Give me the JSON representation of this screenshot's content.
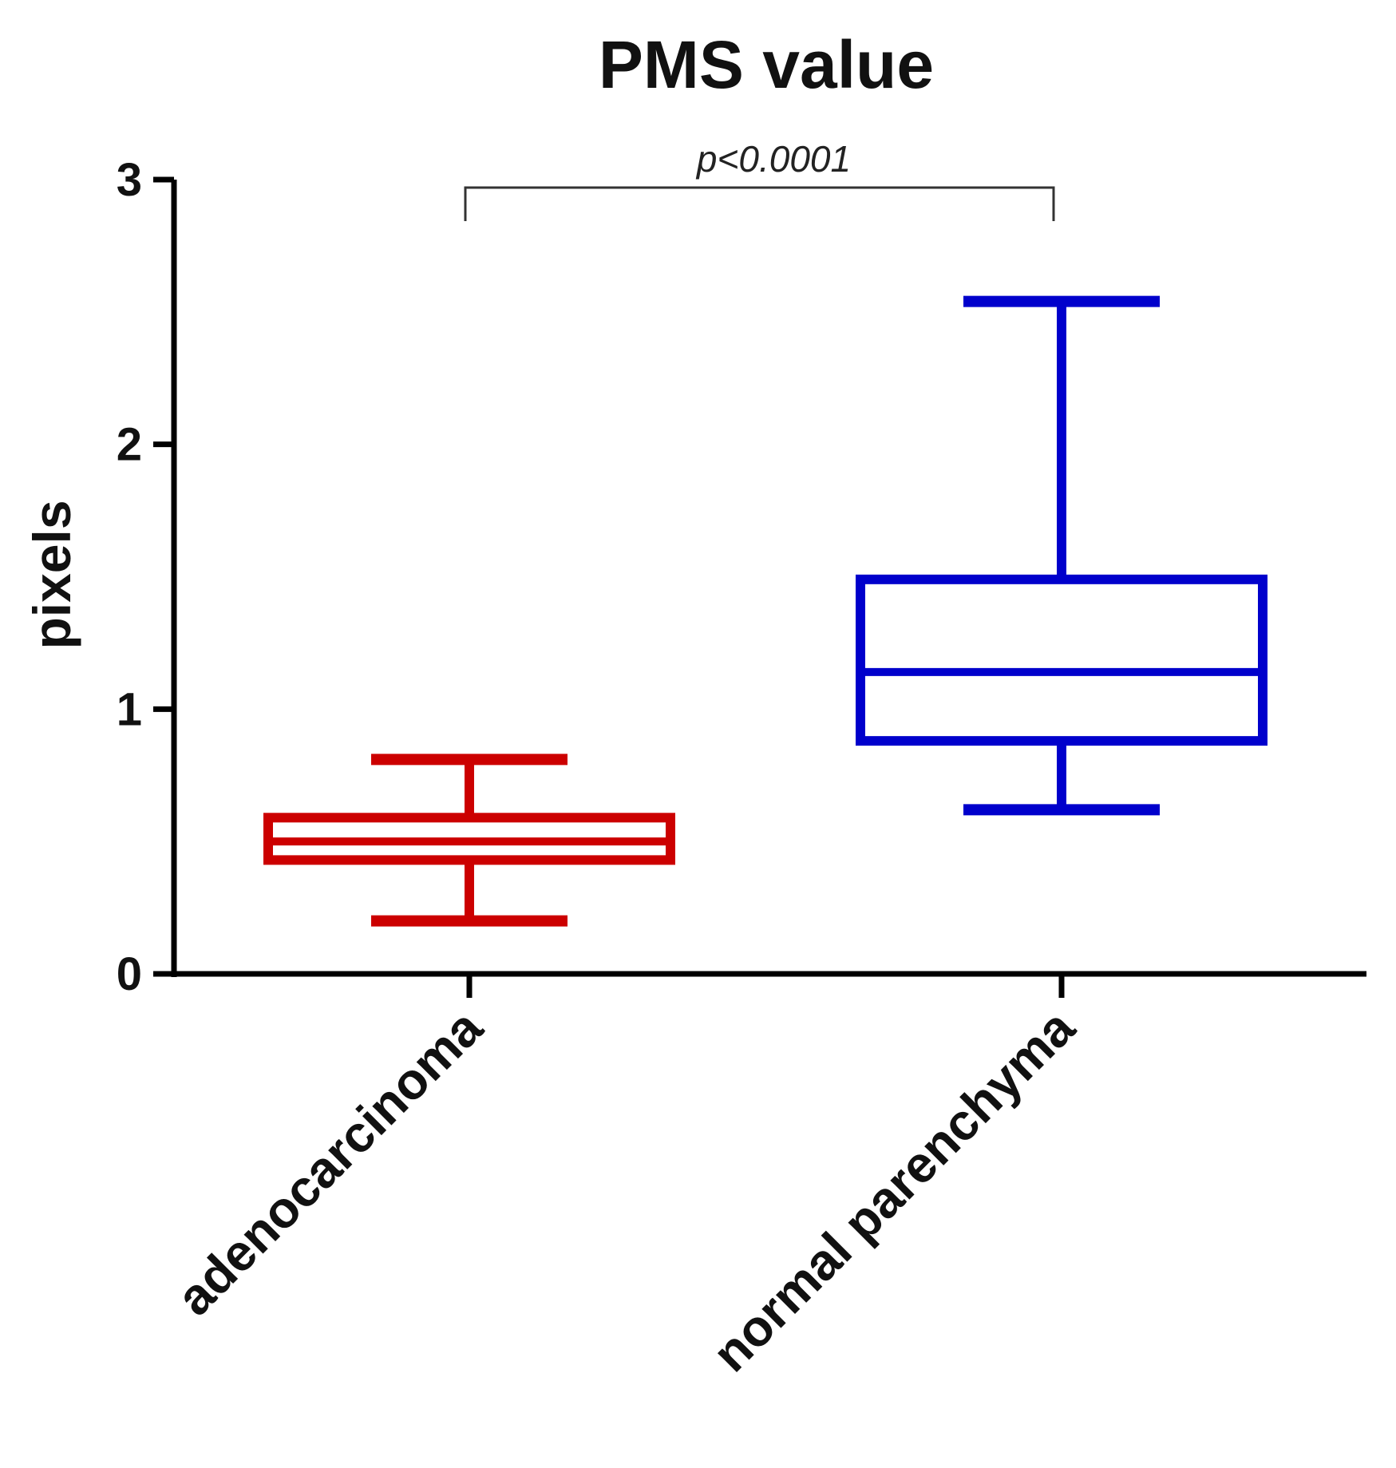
{
  "chart_data": {
    "type": "box",
    "title": "PMS value",
    "ylabel": "pixels",
    "xlabel": "",
    "ylim": [
      0,
      3
    ],
    "yticks": [
      "0",
      "1",
      "2",
      "3"
    ],
    "categories": [
      "adenocarcinoma",
      "normal parenchyma"
    ],
    "boxes": [
      {
        "category": "adenocarcinoma",
        "min": 0.2,
        "q1": 0.43,
        "median": 0.5,
        "q3": 0.59,
        "max": 0.81,
        "color": "#cc0000"
      },
      {
        "category": "normal parenchyma",
        "min": 0.62,
        "q1": 0.88,
        "median": 1.14,
        "q3": 1.49,
        "max": 2.54,
        "color": "#0000cc"
      }
    ],
    "annotation": {
      "text": "p<0.0001",
      "from": "adenocarcinoma",
      "to": "normal parenchyma"
    },
    "grid": false,
    "legend": "none"
  }
}
